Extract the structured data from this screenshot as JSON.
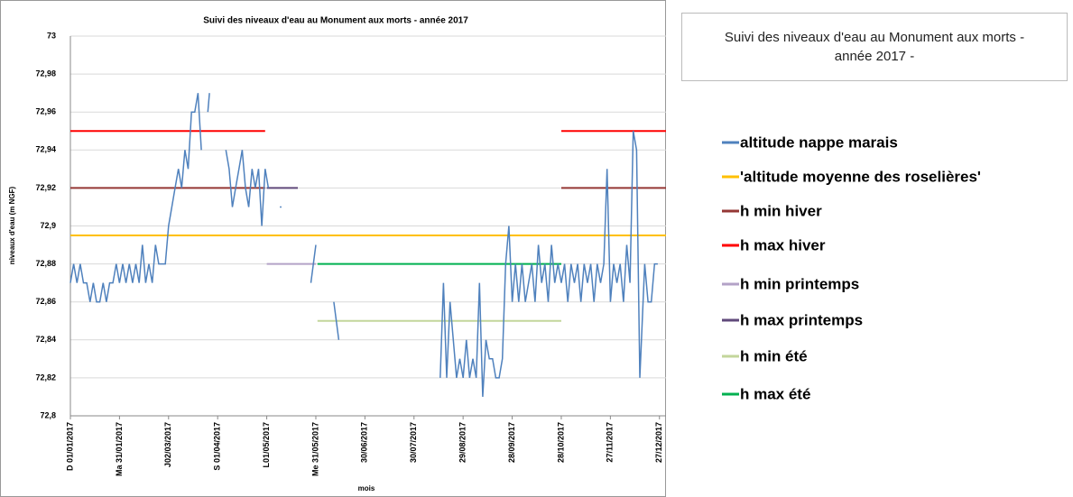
{
  "chart_data": {
    "type": "line",
    "title": "Suivi des niveaux d'eau au Monument aux morts - année 2017",
    "legend_title": "Suivi des niveaux d'eau au Monument aux morts - année 2017 -",
    "x_label": "mois",
    "y_label": "niveaux d'eau (m NGF)",
    "xlim": [
      "2017-01-01",
      "2017-12-31"
    ],
    "xticks": [
      {
        "value": "2017-01-01",
        "label": "D 01/01/2017"
      },
      {
        "value": "2017-01-31",
        "label": "Ma 31/01/2017"
      },
      {
        "value": "2017-03-02",
        "label": "J02/03/2017"
      },
      {
        "value": "2017-04-01",
        "label": "S 01/04/2017"
      },
      {
        "value": "2017-05-01",
        "label": "L01/05/2017"
      },
      {
        "value": "2017-05-31",
        "label": "Me 31/05/2017"
      },
      {
        "value": "2017-06-30",
        "label": "30/06/2017"
      },
      {
        "value": "2017-07-30",
        "label": "30/07/2017"
      },
      {
        "value": "2017-08-29",
        "label": "29/08/2017"
      },
      {
        "value": "2017-09-28",
        "label": "28/09/2017"
      },
      {
        "value": "2017-10-28",
        "label": "28/10/2017"
      },
      {
        "value": "2017-11-27",
        "label": "27/11/2017"
      },
      {
        "value": "2017-12-27",
        "label": "27/12/2017"
      }
    ],
    "ylim": [
      72.8,
      73
    ],
    "yticks": [
      {
        "value": 72.8,
        "label": "72,8"
      },
      {
        "value": 72.82,
        "label": "72,82"
      },
      {
        "value": 72.84,
        "label": "72,84"
      },
      {
        "value": 72.86,
        "label": "72,86"
      },
      {
        "value": 72.88,
        "label": "72,88"
      },
      {
        "value": 72.9,
        "label": "72,9"
      },
      {
        "value": 72.92,
        "label": "72,92"
      },
      {
        "value": 72.94,
        "label": "72,94"
      },
      {
        "value": 72.96,
        "label": "72,96"
      },
      {
        "value": 72.98,
        "label": "72,98"
      },
      73
    ],
    "grid": true,
    "series": [
      {
        "name": "altitude nappe marais",
        "color": "#4f81bd",
        "x": [
          "2017-01-01",
          "2017-01-03",
          "2017-01-05",
          "2017-01-07",
          "2017-01-09",
          "2017-01-11",
          "2017-01-13",
          "2017-01-15",
          "2017-01-17",
          "2017-01-19",
          "2017-01-21",
          "2017-01-23",
          "2017-01-25",
          "2017-01-27",
          "2017-01-29",
          "2017-01-31",
          "2017-02-02",
          "2017-02-04",
          "2017-02-06",
          "2017-02-08",
          "2017-02-10",
          "2017-02-12",
          "2017-02-14",
          "2017-02-16",
          "2017-02-18",
          "2017-02-20",
          "2017-02-22",
          "2017-02-24",
          "2017-02-26",
          "2017-02-28",
          "2017-03-02",
          "2017-03-04",
          "2017-03-06",
          "2017-03-08",
          "2017-03-10",
          "2017-03-12",
          "2017-03-14",
          "2017-03-16",
          "2017-03-18",
          "2017-03-20",
          "2017-03-22",
          "2017-03-24",
          "2017-03-26",
          "2017-03-27",
          "2017-03-29",
          "2017-03-31",
          "2017-04-02",
          "2017-04-06",
          "2017-04-08",
          "2017-04-10",
          "2017-04-12",
          "2017-04-14",
          "2017-04-16",
          "2017-04-18",
          "2017-04-20",
          "2017-04-22",
          "2017-04-24",
          "2017-04-26",
          "2017-04-28",
          "2017-04-30",
          "2017-05-02",
          "2017-05-03",
          "2017-05-09",
          "2017-05-10",
          "2017-05-11",
          "2017-05-28",
          "2017-05-31",
          "2017-06-01",
          "2017-06-11",
          "2017-06-14",
          "2017-06-15",
          "2017-08-15",
          "2017-08-17",
          "2017-08-19",
          "2017-08-21",
          "2017-08-23",
          "2017-08-25",
          "2017-08-27",
          "2017-08-29",
          "2017-08-31",
          "2017-09-02",
          "2017-09-04",
          "2017-09-06",
          "2017-09-08",
          "2017-09-10",
          "2017-09-12",
          "2017-09-14",
          "2017-09-16",
          "2017-09-18",
          "2017-09-20",
          "2017-09-22",
          "2017-09-24",
          "2017-09-26",
          "2017-09-28",
          "2017-09-30",
          "2017-10-02",
          "2017-10-04",
          "2017-10-06",
          "2017-10-08",
          "2017-10-10",
          "2017-10-12",
          "2017-10-14",
          "2017-10-16",
          "2017-10-18",
          "2017-10-20",
          "2017-10-22",
          "2017-10-24",
          "2017-10-26",
          "2017-10-28",
          "2017-10-30",
          "2017-11-01",
          "2017-11-03",
          "2017-11-05",
          "2017-11-07",
          "2017-11-09",
          "2017-11-11",
          "2017-11-13",
          "2017-11-15",
          "2017-11-17",
          "2017-11-19",
          "2017-11-21",
          "2017-11-23",
          "2017-11-25",
          "2017-11-27",
          "2017-11-29",
          "2017-12-01",
          "2017-12-03",
          "2017-12-05",
          "2017-12-07",
          "2017-12-09",
          "2017-12-11",
          "2017-12-13",
          "2017-12-15",
          "2017-12-16",
          "2017-12-18",
          "2017-12-20",
          "2017-12-22",
          "2017-12-24",
          "2017-12-26"
        ],
        "values": [
          72.87,
          72.88,
          72.87,
          72.88,
          72.87,
          72.87,
          72.86,
          72.87,
          72.86,
          72.86,
          72.87,
          72.86,
          72.87,
          72.87,
          72.88,
          72.87,
          72.88,
          72.87,
          72.88,
          72.87,
          72.88,
          72.87,
          72.89,
          72.87,
          72.88,
          72.87,
          72.89,
          72.88,
          72.88,
          72.88,
          72.9,
          72.91,
          72.92,
          72.93,
          72.92,
          72.94,
          72.93,
          72.96,
          72.96,
          72.97,
          72.94,
          null,
          72.96,
          72.97,
          null,
          72.93,
          null,
          72.94,
          72.93,
          72.91,
          72.92,
          72.93,
          72.94,
          72.92,
          72.91,
          72.93,
          72.92,
          72.93,
          72.9,
          72.93,
          72.92,
          null,
          72.91,
          72.91,
          null,
          72.87,
          72.89,
          null,
          72.86,
          72.84,
          null,
          72.82,
          72.87,
          72.82,
          72.86,
          72.84,
          72.82,
          72.83,
          72.82,
          72.84,
          72.82,
          72.83,
          72.82,
          72.87,
          72.81,
          72.84,
          72.83,
          72.83,
          72.82,
          72.82,
          72.83,
          72.88,
          72.9,
          72.86,
          72.88,
          72.86,
          72.88,
          72.86,
          72.87,
          72.88,
          72.86,
          72.89,
          72.87,
          72.88,
          72.86,
          72.89,
          72.87,
          72.88,
          72.87,
          72.88,
          72.86,
          72.88,
          72.87,
          72.88,
          72.86,
          72.88,
          72.87,
          72.88,
          72.86,
          72.88,
          72.87,
          72.88,
          72.93,
          72.86,
          72.88,
          72.87,
          72.88,
          72.86,
          72.89,
          72.87,
          72.95,
          72.94,
          72.82,
          72.84,
          72.88,
          72.86,
          72.86,
          72.88,
          72.88
        ]
      },
      {
        "name": "'altitude moyenne des roselières'",
        "color": "#ffc000",
        "x": [
          "2017-01-01",
          "2017-12-31"
        ],
        "values": [
          72.895,
          72.895
        ]
      },
      {
        "name": "h min hiver",
        "color": "#953735",
        "x": [
          "2017-01-01",
          "2017-04-30",
          "2017-05-01",
          "2017-10-28",
          "2017-12-31"
        ],
        "values": [
          72.92,
          72.92,
          null,
          72.92,
          72.92
        ]
      },
      {
        "name": "h max hiver",
        "color": "#ff0000",
        "x": [
          "2017-01-01",
          "2017-04-30",
          "2017-05-01",
          "2017-10-28",
          "2017-12-31"
        ],
        "values": [
          72.95,
          72.95,
          null,
          72.95,
          72.95
        ]
      },
      {
        "name": "h min printemps",
        "color": "#b3a2c7",
        "x": [
          "2017-05-01",
          "2017-05-31"
        ],
        "values": [
          72.88,
          72.88
        ]
      },
      {
        "name": "h max printemps",
        "color": "#604a7b",
        "x": [
          "2017-05-01",
          "2017-05-20"
        ],
        "values": [
          72.92,
          72.92
        ]
      },
      {
        "name": "h min été",
        "color": "#c3d69b",
        "x": [
          "2017-06-01",
          "2017-10-28"
        ],
        "values": [
          72.85,
          72.85
        ]
      },
      {
        "name": "h max été",
        "color": "#00b050",
        "x": [
          "2017-06-01",
          "2017-10-28"
        ],
        "values": [
          72.88,
          72.88
        ]
      }
    ]
  }
}
